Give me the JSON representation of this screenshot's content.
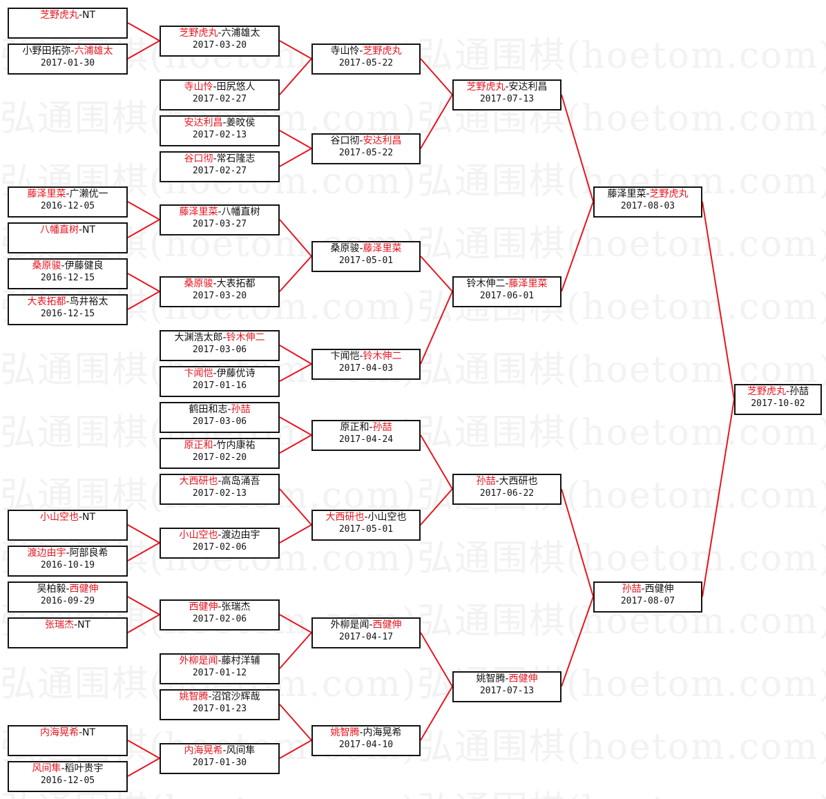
{
  "watermark": "弘通围棋(hoetom.com)",
  "separator": "-",
  "colors": {
    "winner": "#e8141e",
    "connector": "#e8141e",
    "border": "#111111",
    "text": "#111111"
  },
  "rounds": [
    {
      "matches": [
        {
          "p1": "芝野虎丸",
          "p2": "NT",
          "winner": 1,
          "date": ""
        },
        {
          "p1": "小野田拓弥",
          "p2": "六浦雄太",
          "winner": 2,
          "date": "2017-01-30"
        },
        {
          "p1": "藤泽里菜",
          "p2": "广濑优一",
          "winner": 1,
          "date": "2016-12-05"
        },
        {
          "p1": "八幡直树",
          "p2": "NT",
          "winner": 1,
          "date": ""
        },
        {
          "p1": "桑原骏",
          "p2": "伊藤健良",
          "winner": 1,
          "date": "2016-12-15"
        },
        {
          "p1": "大表拓都",
          "p2": "鸟井裕太",
          "winner": 1,
          "date": "2016-12-15"
        },
        {
          "p1": "小山空也",
          "p2": "NT",
          "winner": 1,
          "date": ""
        },
        {
          "p1": "渡边由宇",
          "p2": "阿部良希",
          "winner": 1,
          "date": "2016-10-19"
        },
        {
          "p1": "吴柏毅",
          "p2": "西健伸",
          "winner": 2,
          "date": "2016-09-29"
        },
        {
          "p1": "张瑞杰",
          "p2": "NT",
          "winner": 1,
          "date": ""
        },
        {
          "p1": "内海晃希",
          "p2": "NT",
          "winner": 1,
          "date": ""
        },
        {
          "p1": "风间隼",
          "p2": "稻叶贵宇",
          "winner": 1,
          "date": "2016-12-05"
        }
      ]
    },
    {
      "matches": [
        {
          "p1": "芝野虎丸",
          "p2": "六浦雄太",
          "winner": 1,
          "date": "2017-03-20"
        },
        {
          "p1": "寺山怜",
          "p2": "田尻悠人",
          "winner": 1,
          "date": "2017-02-27"
        },
        {
          "p1": "安达利昌",
          "p2": "姜旼侯",
          "winner": 1,
          "date": "2017-02-13"
        },
        {
          "p1": "谷口彻",
          "p2": "常石隆志",
          "winner": 1,
          "date": "2017-02-27"
        },
        {
          "p1": "藤泽里菜",
          "p2": "八幡直树",
          "winner": 1,
          "date": "2017-03-27"
        },
        {
          "p1": "桑原骏",
          "p2": "大表拓都",
          "winner": 1,
          "date": "2017-03-20"
        },
        {
          "p1": "大渊浩太郎",
          "p2": "铃木伸二",
          "winner": 2,
          "date": "2017-03-06"
        },
        {
          "p1": "卞闻恺",
          "p2": "伊藤优诗",
          "winner": 1,
          "date": "2017-01-16"
        },
        {
          "p1": "鹤田和志",
          "p2": "孙喆",
          "winner": 2,
          "date": "2017-03-06"
        },
        {
          "p1": "原正和",
          "p2": "竹内康祐",
          "winner": 1,
          "date": "2017-02-20"
        },
        {
          "p1": "大西研也",
          "p2": "高岛涌吾",
          "winner": 1,
          "date": "2017-02-13"
        },
        {
          "p1": "小山空也",
          "p2": "渡边由宇",
          "winner": 1,
          "date": "2017-02-06"
        },
        {
          "p1": "西健伸",
          "p2": "张瑞杰",
          "winner": 1,
          "date": "2017-02-06"
        },
        {
          "p1": "外柳是闻",
          "p2": "藤村洋辅",
          "winner": 1,
          "date": "2017-01-12"
        },
        {
          "p1": "姚智腾",
          "p2": "沼馆沙辉哉",
          "winner": 1,
          "date": "2017-01-23"
        },
        {
          "p1": "内海晃希",
          "p2": "风间隼",
          "winner": 1,
          "date": "2017-01-30"
        }
      ]
    },
    {
      "matches": [
        {
          "p1": "寺山怜",
          "p2": "芝野虎丸",
          "winner": 2,
          "date": "2017-05-22"
        },
        {
          "p1": "谷口彻",
          "p2": "安达利昌",
          "winner": 2,
          "date": "2017-05-22"
        },
        {
          "p1": "桑原骏",
          "p2": "藤泽里菜",
          "winner": 2,
          "date": "2017-05-01"
        },
        {
          "p1": "卞闻恺",
          "p2": "铃木伸二",
          "winner": 2,
          "date": "2017-04-03"
        },
        {
          "p1": "原正和",
          "p2": "孙喆",
          "winner": 2,
          "date": "2017-04-24"
        },
        {
          "p1": "大西研也",
          "p2": "小山空也",
          "winner": 1,
          "date": "2017-05-01"
        },
        {
          "p1": "外柳是闻",
          "p2": "西健伸",
          "winner": 2,
          "date": "2017-04-17"
        },
        {
          "p1": "姚智腾",
          "p2": "内海晃希",
          "winner": 1,
          "date": "2017-04-10"
        }
      ]
    },
    {
      "matches": [
        {
          "p1": "芝野虎丸",
          "p2": "安达利昌",
          "winner": 1,
          "date": "2017-07-13"
        },
        {
          "p1": "铃木伸二",
          "p2": "藤泽里菜",
          "winner": 2,
          "date": "2017-06-01"
        },
        {
          "p1": "孙喆",
          "p2": "大西研也",
          "winner": 1,
          "date": "2017-06-22"
        },
        {
          "p1": "姚智腾",
          "p2": "西健伸",
          "winner": 2,
          "date": "2017-07-13"
        }
      ]
    },
    {
      "matches": [
        {
          "p1": "藤泽里菜",
          "p2": "芝野虎丸",
          "winner": 2,
          "date": "2017-08-03"
        },
        {
          "p1": "孙喆",
          "p2": "西健伸",
          "winner": 1,
          "date": "2017-08-07"
        }
      ]
    },
    {
      "matches": [
        {
          "p1": "芝野虎丸",
          "p2": "孙喆",
          "winner": 1,
          "date": "2017-10-02"
        }
      ]
    }
  ]
}
